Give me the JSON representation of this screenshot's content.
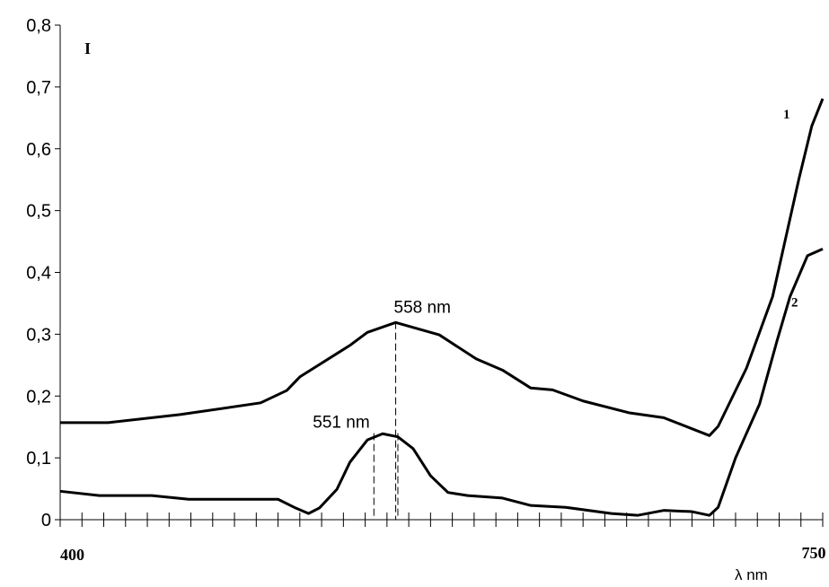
{
  "chart_data": {
    "type": "line",
    "y_label": "I",
    "x_label": "λ nm",
    "xlim": [
      400,
      750
    ],
    "ylim": [
      0,
      0.8
    ],
    "xticks": [
      400,
      750
    ],
    "xminorticks": [
      410,
      420,
      430,
      440,
      450,
      460,
      470,
      480,
      490,
      500,
      510,
      520,
      530,
      540,
      550,
      560,
      570,
      580,
      590,
      600,
      610,
      620,
      630,
      640,
      650,
      660,
      670,
      680,
      690,
      700,
      710,
      720,
      730,
      740
    ],
    "yticks": [
      0,
      {
        "value": 0.1,
        "label": "0,1"
      },
      {
        "value": 0.2,
        "label": "0,2"
      },
      {
        "value": 0.3,
        "label": "0,3"
      },
      {
        "value": 0.4,
        "label": "0,4"
      },
      {
        "value": 0.5,
        "label": "0,5"
      },
      {
        "value": 0.6,
        "label": "0,6"
      },
      {
        "value": 0.7,
        "label": "0,7"
      },
      {
        "value": 0.8,
        "label": "0,8"
      }
    ],
    "series": [
      {
        "name": "1",
        "color": "#000000",
        "x": [
          400,
          422,
          455,
          492,
          504,
          510,
          533,
          541,
          554,
          574,
          591,
          603,
          616,
          626,
          640,
          661,
          677,
          698,
          702,
          715,
          727,
          739,
          745,
          750
        ],
        "values": [
          0.157,
          0.157,
          0.17,
          0.189,
          0.209,
          0.231,
          0.282,
          0.303,
          0.319,
          0.299,
          0.26,
          0.242,
          0.213,
          0.21,
          0.192,
          0.173,
          0.165,
          0.136,
          0.151,
          0.245,
          0.361,
          0.55,
          0.637,
          0.681
        ]
      },
      {
        "name": "2",
        "color": "#000000",
        "x": [
          400,
          418,
          442,
          459,
          500,
          508,
          514,
          519,
          527,
          533,
          541,
          548,
          555,
          562,
          570,
          578,
          587,
          603,
          616,
          632,
          653,
          665,
          677,
          690,
          698,
          702,
          710,
          721,
          729,
          735,
          743,
          750
        ],
        "values": [
          0.046,
          0.039,
          0.039,
          0.033,
          0.033,
          0.019,
          0.01,
          0.019,
          0.049,
          0.093,
          0.129,
          0.139,
          0.134,
          0.115,
          0.071,
          0.044,
          0.039,
          0.035,
          0.023,
          0.02,
          0.01,
          0.007,
          0.015,
          0.013,
          0.007,
          0.02,
          0.1,
          0.187,
          0.289,
          0.361,
          0.427,
          0.438
        ]
      }
    ],
    "annotations": [
      {
        "text": "558 nm",
        "y": 0.32,
        "lines": [
          554
        ]
      },
      {
        "text": "551 nm",
        "y": 0.14,
        "lines": [
          544,
          555
        ]
      }
    ]
  }
}
